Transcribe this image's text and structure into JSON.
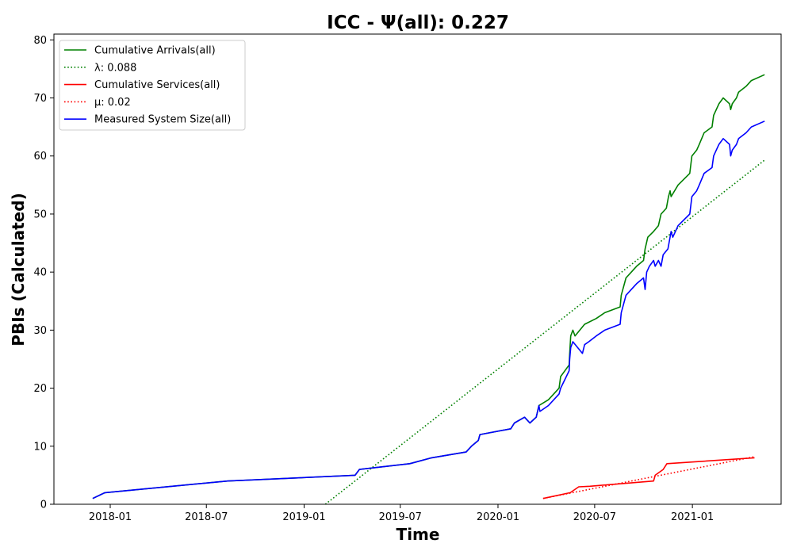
{
  "chart_data": {
    "type": "line",
    "title": "ICC -  Ψ(all): 0.227",
    "xlabel": "Time",
    "ylabel": "PBIs (Calculated)",
    "xlim": [
      "2017-09-17",
      "2021-06-17"
    ],
    "ylim": [
      0,
      81
    ],
    "x_ticks": [
      {
        "date": "2018-01-01",
        "label": "2018-01"
      },
      {
        "date": "2018-07-01",
        "label": "2018-07"
      },
      {
        "date": "2019-01-01",
        "label": "2019-01"
      },
      {
        "date": "2019-07-01",
        "label": "2019-07"
      },
      {
        "date": "2020-01-01",
        "label": "2020-01"
      },
      {
        "date": "2020-07-01",
        "label": "2020-07"
      },
      {
        "date": "2021-01-01",
        "label": "2021-01"
      }
    ],
    "y_ticks": [
      0,
      10,
      20,
      30,
      40,
      50,
      60,
      70,
      80
    ],
    "legend_position": "top-left",
    "series": [
      {
        "name": "Cumulative Arrivals(all)",
        "color": "#008000",
        "style": "solid",
        "points": [
          [
            "2017-11-29",
            1
          ],
          [
            "2017-12-22",
            2
          ],
          [
            "2018-08-10",
            4
          ],
          [
            "2019-04-07",
            5
          ],
          [
            "2019-04-15",
            6
          ],
          [
            "2019-07-19",
            7
          ],
          [
            "2019-08-29",
            8
          ],
          [
            "2019-11-02",
            9
          ],
          [
            "2019-11-12",
            10
          ],
          [
            "2019-11-25",
            11
          ],
          [
            "2019-11-28",
            12
          ],
          [
            "2020-01-25",
            13
          ],
          [
            "2020-02-01",
            14
          ],
          [
            "2020-02-20",
            15
          ],
          [
            "2020-03-01",
            14
          ],
          [
            "2020-03-13",
            15
          ],
          [
            "2020-03-18",
            17
          ],
          [
            "2020-04-05",
            18
          ],
          [
            "2020-04-25",
            20
          ],
          [
            "2020-04-28",
            22
          ],
          [
            "2020-05-14",
            24
          ],
          [
            "2020-05-15",
            26
          ],
          [
            "2020-05-17",
            29
          ],
          [
            "2020-05-21",
            30
          ],
          [
            "2020-05-25",
            29
          ],
          [
            "2020-06-12",
            31
          ],
          [
            "2020-07-04",
            32
          ],
          [
            "2020-07-20",
            33
          ],
          [
            "2020-08-18",
            34
          ],
          [
            "2020-08-20",
            36
          ],
          [
            "2020-08-29",
            39
          ],
          [
            "2020-09-08",
            40
          ],
          [
            "2020-09-18",
            41
          ],
          [
            "2020-10-01",
            42
          ],
          [
            "2020-10-04",
            44
          ],
          [
            "2020-10-09",
            46
          ],
          [
            "2020-10-20",
            47
          ],
          [
            "2020-10-29",
            48
          ],
          [
            "2020-11-03",
            50
          ],
          [
            "2020-11-13",
            51
          ],
          [
            "2020-11-17",
            53
          ],
          [
            "2020-11-20",
            54
          ],
          [
            "2020-11-22",
            53
          ],
          [
            "2020-12-05",
            55
          ],
          [
            "2020-12-27",
            57
          ],
          [
            "2020-12-31",
            60
          ],
          [
            "2021-01-09",
            61
          ],
          [
            "2021-01-14",
            62
          ],
          [
            "2021-01-23",
            64
          ],
          [
            "2021-02-07",
            65
          ],
          [
            "2021-02-10",
            67
          ],
          [
            "2021-02-20",
            69
          ],
          [
            "2021-02-28",
            70
          ],
          [
            "2021-03-12",
            69
          ],
          [
            "2021-03-14",
            68
          ],
          [
            "2021-03-17",
            69
          ],
          [
            "2021-03-25",
            70
          ],
          [
            "2021-03-29",
            71
          ],
          [
            "2021-04-12",
            72
          ],
          [
            "2021-04-22",
            73
          ],
          [
            "2021-05-17",
            74
          ]
        ]
      },
      {
        "name": "λ: 0.088",
        "color": "#008000",
        "style": "dotted",
        "points": [
          [
            "2019-02-10",
            0
          ],
          [
            "2021-05-17",
            59.3
          ]
        ]
      },
      {
        "name": "Cumulative Services(all)",
        "color": "#ff0000",
        "style": "solid",
        "points": [
          [
            "2020-03-26",
            1
          ],
          [
            "2020-05-16",
            2
          ],
          [
            "2020-06-01",
            3
          ],
          [
            "2020-06-22",
            3.1
          ],
          [
            "2020-10-20",
            4
          ],
          [
            "2020-10-23",
            5
          ],
          [
            "2020-11-07",
            6
          ],
          [
            "2020-11-14",
            7
          ],
          [
            "2021-04-28",
            8
          ]
        ]
      },
      {
        "name": "μ: 0.02",
        "color": "#ff0000",
        "style": "dotted",
        "points": [
          [
            "2020-03-26",
            1.0
          ],
          [
            "2021-04-28",
            8.2
          ]
        ]
      },
      {
        "name": "Measured System Size(all)",
        "color": "#0000ff",
        "style": "solid",
        "points": [
          [
            "2017-11-29",
            1
          ],
          [
            "2017-12-22",
            2
          ],
          [
            "2018-08-10",
            4
          ],
          [
            "2019-04-07",
            5
          ],
          [
            "2019-04-15",
            6
          ],
          [
            "2019-07-19",
            7
          ],
          [
            "2019-08-29",
            8
          ],
          [
            "2019-11-02",
            9
          ],
          [
            "2019-11-12",
            10
          ],
          [
            "2019-11-25",
            11
          ],
          [
            "2019-11-28",
            12
          ],
          [
            "2020-01-25",
            13
          ],
          [
            "2020-02-01",
            14
          ],
          [
            "2020-02-20",
            15
          ],
          [
            "2020-03-01",
            14
          ],
          [
            "2020-03-13",
            15
          ],
          [
            "2020-03-18",
            17
          ],
          [
            "2020-03-20",
            16
          ],
          [
            "2020-04-05",
            17
          ],
          [
            "2020-04-25",
            19
          ],
          [
            "2020-04-28",
            20
          ],
          [
            "2020-05-14",
            23
          ],
          [
            "2020-05-15",
            25
          ],
          [
            "2020-05-17",
            27
          ],
          [
            "2020-05-21",
            28
          ],
          [
            "2020-06-08",
            26
          ],
          [
            "2020-06-12",
            27.5
          ],
          [
            "2020-06-20",
            28
          ],
          [
            "2020-07-04",
            29
          ],
          [
            "2020-07-20",
            30
          ],
          [
            "2020-08-18",
            31
          ],
          [
            "2020-08-20",
            33
          ],
          [
            "2020-08-29",
            36
          ],
          [
            "2020-09-08",
            37
          ],
          [
            "2020-09-18",
            38
          ],
          [
            "2020-10-01",
            39
          ],
          [
            "2020-10-04",
            37
          ],
          [
            "2020-10-07",
            40
          ],
          [
            "2020-10-12",
            41
          ],
          [
            "2020-10-20",
            42
          ],
          [
            "2020-10-23",
            41
          ],
          [
            "2020-10-29",
            42
          ],
          [
            "2020-11-03",
            41
          ],
          [
            "2020-11-07",
            43
          ],
          [
            "2020-11-16",
            44
          ],
          [
            "2020-11-22",
            47
          ],
          [
            "2020-11-25",
            46
          ],
          [
            "2020-12-05",
            48
          ],
          [
            "2020-12-27",
            50
          ],
          [
            "2020-12-31",
            53
          ],
          [
            "2021-01-09",
            54
          ],
          [
            "2021-01-14",
            55
          ],
          [
            "2021-01-23",
            57
          ],
          [
            "2021-02-07",
            58
          ],
          [
            "2021-02-10",
            60
          ],
          [
            "2021-02-20",
            62
          ],
          [
            "2021-02-28",
            63
          ],
          [
            "2021-03-12",
            62
          ],
          [
            "2021-03-14",
            60
          ],
          [
            "2021-03-17",
            61
          ],
          [
            "2021-03-25",
            62
          ],
          [
            "2021-03-29",
            63
          ],
          [
            "2021-04-12",
            64
          ],
          [
            "2021-04-22",
            65
          ],
          [
            "2021-05-17",
            66
          ]
        ]
      }
    ]
  }
}
